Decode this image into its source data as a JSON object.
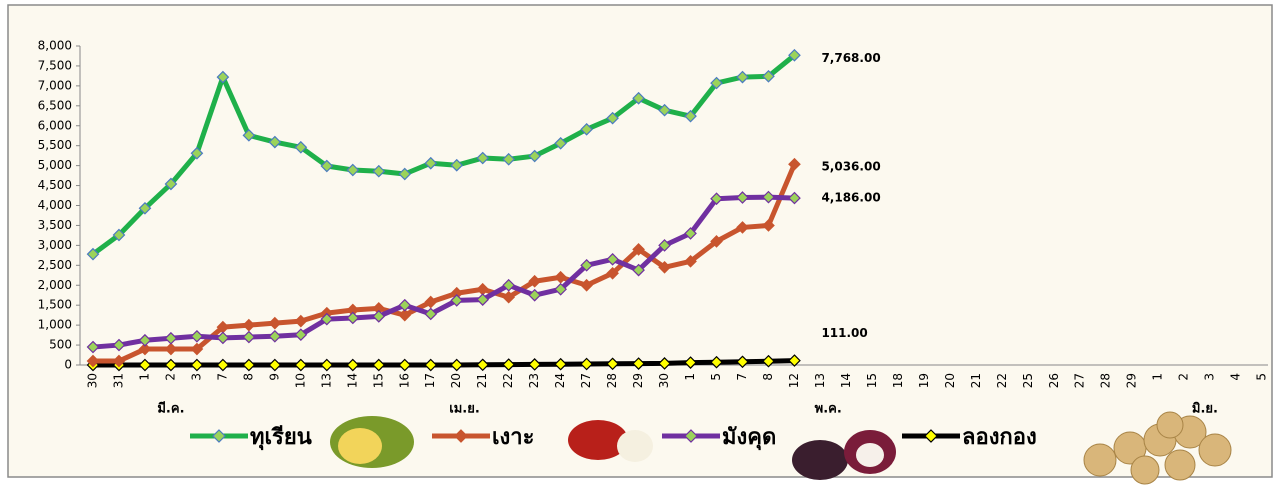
{
  "chart_data": {
    "type": "line",
    "categories": [
      "30",
      "31",
      "1",
      "2",
      "3",
      "7",
      "8",
      "9",
      "10",
      "13",
      "14",
      "15",
      "16",
      "17",
      "20",
      "21",
      "22",
      "23",
      "24",
      "27",
      "28",
      "29",
      "30",
      "1",
      "5",
      "7",
      "8",
      "12",
      "13",
      "14",
      "15",
      "18",
      "19",
      "20",
      "21",
      "22",
      "25",
      "26",
      "27",
      "28",
      "29",
      "1",
      "2",
      "3",
      "4",
      "5"
    ],
    "months": [
      "มี.ค.",
      "เม.ย.",
      "พ.ค.",
      "มิ.ย."
    ],
    "ylim": [
      0,
      8000
    ],
    "yticks": [
      0,
      500,
      {
        "value": 1000,
        "label": "1,000"
      },
      {
        "value": 1500,
        "label": "1,500"
      },
      {
        "value": 2000,
        "label": "2,000"
      },
      {
        "value": 2500,
        "label": "2,500"
      },
      {
        "value": 3000,
        "label": "3,000"
      },
      {
        "value": 3500,
        "label": "3,500"
      },
      {
        "value": 4000,
        "label": "4,000"
      },
      {
        "value": 4500,
        "label": "4,500"
      },
      {
        "value": 5000,
        "label": "5,000"
      },
      {
        "value": 5500,
        "label": "5,500"
      },
      {
        "value": 6000,
        "label": "6,000"
      },
      {
        "value": 6500,
        "label": "6,500"
      },
      {
        "value": 7000,
        "label": "7,000"
      },
      {
        "value": 7500,
        "label": "7,500"
      },
      {
        "value": 8000,
        "label": "8,000"
      }
    ],
    "series": [
      {
        "name": "ทุเรียน",
        "color": "#1fb04a",
        "label_color": "#1fb04a",
        "marker": "#9bd35a",
        "marker_edge": "#4a7bc0",
        "values": [
          2780,
          3260,
          3930,
          4540,
          5310,
          7220,
          5760,
          5590,
          5460,
          4990,
          4890,
          4860,
          4790,
          5060,
          5010,
          5190,
          5160,
          5240,
          5560,
          5910,
          6190,
          6690,
          6390,
          6240,
          7070,
          7220,
          7240,
          7768,
          null,
          null,
          null,
          null,
          null,
          null,
          null,
          null,
          null,
          null,
          null,
          null,
          null,
          null,
          null,
          null,
          null,
          null
        ],
        "value_labels": [
          null,
          null,
          null,
          null,
          null,
          null,
          null,
          null,
          null,
          null,
          null,
          null,
          null,
          null,
          null,
          null,
          null,
          null,
          null,
          null,
          null,
          null,
          null,
          null,
          null,
          null,
          null,
          "7,768.00",
          null,
          null,
          null,
          null,
          null,
          null,
          null,
          null,
          null,
          null,
          null,
          null,
          null,
          null,
          null,
          null,
          null,
          null
        ]
      },
      {
        "name": "เงาะ",
        "color": "#c8552e",
        "label_color": "#e0201b",
        "marker": "#c8552e",
        "marker_edge": "#c8552e",
        "values": [
          100,
          100,
          400,
          400,
          400,
          950,
          1000,
          1050,
          1100,
          1300,
          1380,
          1420,
          1250,
          1580,
          1800,
          1900,
          1700,
          2100,
          2200,
          2000,
          2300,
          2900,
          2450,
          2600,
          3100,
          3450,
          3500,
          5036,
          null,
          null,
          null,
          null,
          null,
          null,
          null,
          null,
          null,
          null,
          null,
          null,
          null,
          null,
          null,
          null,
          null,
          null
        ],
        "value_labels": [
          null,
          null,
          null,
          null,
          null,
          null,
          null,
          null,
          null,
          null,
          null,
          null,
          null,
          null,
          null,
          null,
          null,
          null,
          null,
          null,
          null,
          null,
          null,
          null,
          null,
          null,
          null,
          "5,036.00",
          null,
          null,
          null,
          null,
          null,
          null,
          null,
          null,
          null,
          null,
          null,
          null,
          null,
          null,
          null,
          null,
          null,
          null
        ]
      },
      {
        "name": "มังคุด",
        "color": "#7030a0",
        "label_color": "#1f3d7a",
        "marker": "#9bd35a",
        "marker_edge": "#7030a0",
        "values": [
          450,
          500,
          620,
          670,
          720,
          680,
          700,
          720,
          760,
          1150,
          1180,
          1220,
          1500,
          1280,
          1620,
          1640,
          2000,
          1750,
          1900,
          2500,
          2650,
          2380,
          3000,
          3300,
          4170,
          4200,
          4210,
          4186,
          null,
          null,
          null,
          null,
          null,
          null,
          null,
          null,
          null,
          null,
          null,
          null,
          null,
          null,
          null,
          null,
          null,
          null
        ],
        "value_labels": [
          null,
          null,
          null,
          null,
          null,
          null,
          null,
          null,
          null,
          null,
          null,
          null,
          null,
          null,
          null,
          null,
          null,
          null,
          null,
          null,
          null,
          null,
          null,
          null,
          null,
          null,
          null,
          "4,186.00",
          null,
          null,
          null,
          null,
          null,
          null,
          null,
          null,
          null,
          null,
          null,
          null,
          null,
          null,
          null,
          null,
          null,
          null
        ]
      },
      {
        "name": "ลองกอง",
        "color": "#000000",
        "label_color": "#000000",
        "marker": "#ffff00",
        "marker_edge": "#000000",
        "values": [
          0,
          0,
          0,
          0,
          0,
          0,
          0,
          0,
          0,
          0,
          0,
          0,
          0,
          0,
          0,
          5,
          10,
          15,
          20,
          25,
          30,
          35,
          40,
          60,
          70,
          80,
          95,
          111,
          null,
          null,
          null,
          null,
          null,
          null,
          null,
          null,
          null,
          null,
          null,
          null,
          null,
          null,
          null,
          null,
          null,
          null
        ],
        "value_labels": [
          null,
          null,
          null,
          null,
          null,
          null,
          null,
          null,
          null,
          null,
          null,
          null,
          null,
          null,
          null,
          null,
          null,
          null,
          null,
          null,
          null,
          null,
          null,
          null,
          null,
          null,
          null,
          "111.00",
          null,
          null,
          null,
          null,
          null,
          null,
          null,
          null,
          null,
          null,
          null,
          null,
          null,
          null,
          null,
          null,
          null,
          null
        ]
      }
    ]
  }
}
